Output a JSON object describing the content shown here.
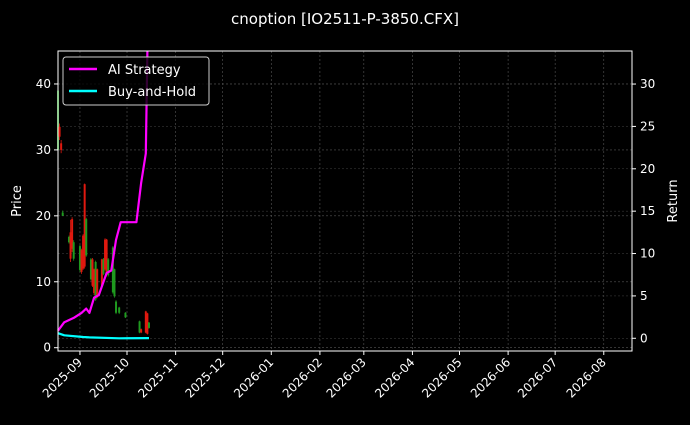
{
  "chart_data": {
    "type": "candlestick+line",
    "title": "cnoption [IO2511-P-3850.CFX]",
    "ylabel": "Price",
    "ylabel_right": "Return",
    "xlim": [
      "2025-08-18",
      "2026-08-19"
    ],
    "ylim": [
      -0.5,
      45
    ],
    "ylim_right": [
      -1.5,
      33.9
    ],
    "grid": true,
    "legend_position": "top-left",
    "x_ticks": [
      "2025-09",
      "2025-10",
      "2025-11",
      "2025-12",
      "2026-01",
      "2026-02",
      "2026-03",
      "2026-04",
      "2026-05",
      "2026-06",
      "2026-07",
      "2026-08"
    ],
    "y_ticks": [
      0,
      10,
      20,
      30,
      40
    ],
    "y_ticks_right": [
      0,
      5,
      10,
      15,
      20,
      25,
      30
    ],
    "colors": {
      "background": "#000000",
      "up": "#1f9a1f",
      "down": "#e0190f",
      "ai_strategy": "#ff00ff",
      "buy_and_hold": "#00ffff"
    },
    "candles": [
      {
        "date": "2025-08-18",
        "open": 30,
        "high": 40.5,
        "low": 29,
        "close": 39
      },
      {
        "date": "2025-08-19",
        "open": 33.5,
        "high": 34,
        "low": 31.5,
        "close": 32
      },
      {
        "date": "2025-08-20",
        "open": 31,
        "high": 31.5,
        "low": 29.5,
        "close": 30
      },
      {
        "date": "2025-08-21",
        "open": 20,
        "high": 20.8,
        "low": 20,
        "close": 20.5
      },
      {
        "date": "2025-08-25",
        "open": 16,
        "high": 17,
        "low": 15.8,
        "close": 16.8
      },
      {
        "date": "2025-08-26",
        "open": 17.5,
        "high": 19.4,
        "low": 13,
        "close": 13.5
      },
      {
        "date": "2025-08-27",
        "open": 19.5,
        "high": 19.8,
        "low": 14.5,
        "close": 15
      },
      {
        "date": "2025-08-28",
        "open": 13.5,
        "high": 16.3,
        "low": 13.2,
        "close": 16
      },
      {
        "date": "2025-09-01",
        "open": 11.8,
        "high": 15.6,
        "low": 11.5,
        "close": 15.4
      },
      {
        "date": "2025-09-02",
        "open": 14.8,
        "high": 15,
        "low": 11.2,
        "close": 11.5
      },
      {
        "date": "2025-09-03",
        "open": 17,
        "high": 17.2,
        "low": 11.8,
        "close": 12
      },
      {
        "date": "2025-09-04",
        "open": 24.8,
        "high": 24.9,
        "low": 12,
        "close": 12.3
      },
      {
        "date": "2025-09-05",
        "open": 14,
        "high": 19.7,
        "low": 13.8,
        "close": 19.5
      },
      {
        "date": "2025-09-08",
        "open": 10.4,
        "high": 13.6,
        "low": 10.2,
        "close": 13.4
      },
      {
        "date": "2025-09-09",
        "open": 13.4,
        "high": 13.6,
        "low": 9.2,
        "close": 9.4
      },
      {
        "date": "2025-09-10",
        "open": 11.9,
        "high": 12,
        "low": 8,
        "close": 8.3
      },
      {
        "date": "2025-09-11",
        "open": 7.3,
        "high": 13.2,
        "low": 7.1,
        "close": 13
      },
      {
        "date": "2025-09-12",
        "open": 11.9,
        "high": 12,
        "low": 7.5,
        "close": 7.8
      },
      {
        "date": "2025-09-15",
        "open": 13.4,
        "high": 13.5,
        "low": 9.3,
        "close": 9.4
      },
      {
        "date": "2025-09-16",
        "open": 11.2,
        "high": 13.6,
        "low": 11,
        "close": 13.4
      },
      {
        "date": "2025-09-17",
        "open": 16.4,
        "high": 16.6,
        "low": 11.7,
        "close": 11.9
      },
      {
        "date": "2025-09-18",
        "open": 16.4,
        "high": 16.5,
        "low": 10.8,
        "close": 11
      },
      {
        "date": "2025-09-19",
        "open": 11,
        "high": 13.6,
        "low": 10.8,
        "close": 13.4
      },
      {
        "date": "2025-09-22",
        "open": 8.4,
        "high": 15.4,
        "low": 8.2,
        "close": 15.2
      },
      {
        "date": "2025-09-23",
        "open": 7.8,
        "high": 12,
        "low": 7.6,
        "close": 11.9
      },
      {
        "date": "2025-09-24",
        "open": 5.3,
        "high": 7.2,
        "low": 5.1,
        "close": 7
      },
      {
        "date": "2025-09-26",
        "open": 5.3,
        "high": 6.2,
        "low": 5.1,
        "close": 6.1
      },
      {
        "date": "2025-09-30",
        "open": 4.6,
        "high": 5.4,
        "low": 4.5,
        "close": 5.3
      },
      {
        "date": "2025-10-09",
        "open": 2.3,
        "high": 4.1,
        "low": 2.2,
        "close": 4
      },
      {
        "date": "2025-10-10",
        "open": 2.8,
        "high": 2.9,
        "low": 2.2,
        "close": 2.3
      },
      {
        "date": "2025-10-13",
        "open": 5.5,
        "high": 5.6,
        "low": 2.2,
        "close": 2.3
      },
      {
        "date": "2025-10-14",
        "open": 5.2,
        "high": 5.3,
        "low": 2,
        "close": 2.1
      },
      {
        "date": "2025-10-15",
        "open": 3,
        "high": 3.9,
        "low": 2.9,
        "close": 3.8
      }
    ],
    "series": [
      {
        "name": "AI Strategy",
        "axis": "right",
        "points": [
          [
            "2025-08-18",
            0.9
          ],
          [
            "2025-08-22",
            1.9
          ],
          [
            "2025-08-28",
            2.4
          ],
          [
            "2025-09-02",
            3.0
          ],
          [
            "2025-09-05",
            3.5
          ],
          [
            "2025-09-07",
            3.0
          ],
          [
            "2025-09-10",
            4.8
          ],
          [
            "2025-09-13",
            5.1
          ],
          [
            "2025-09-18",
            7.7
          ],
          [
            "2025-09-21",
            8.0
          ],
          [
            "2025-09-24",
            11.6
          ],
          [
            "2025-09-27",
            13.7
          ],
          [
            "2025-10-07",
            13.7
          ],
          [
            "2025-10-10",
            18.3
          ],
          [
            "2025-10-13",
            21.8
          ],
          [
            "2025-10-14",
            34
          ]
        ]
      },
      {
        "name": "Buy-and-Hold",
        "axis": "right",
        "points": [
          [
            "2025-08-18",
            0.6
          ],
          [
            "2025-08-22",
            0.35
          ],
          [
            "2025-09-03",
            0.15
          ],
          [
            "2025-09-07",
            0.1
          ],
          [
            "2025-09-26",
            0.0
          ],
          [
            "2025-10-15",
            0.02
          ]
        ]
      }
    ]
  }
}
